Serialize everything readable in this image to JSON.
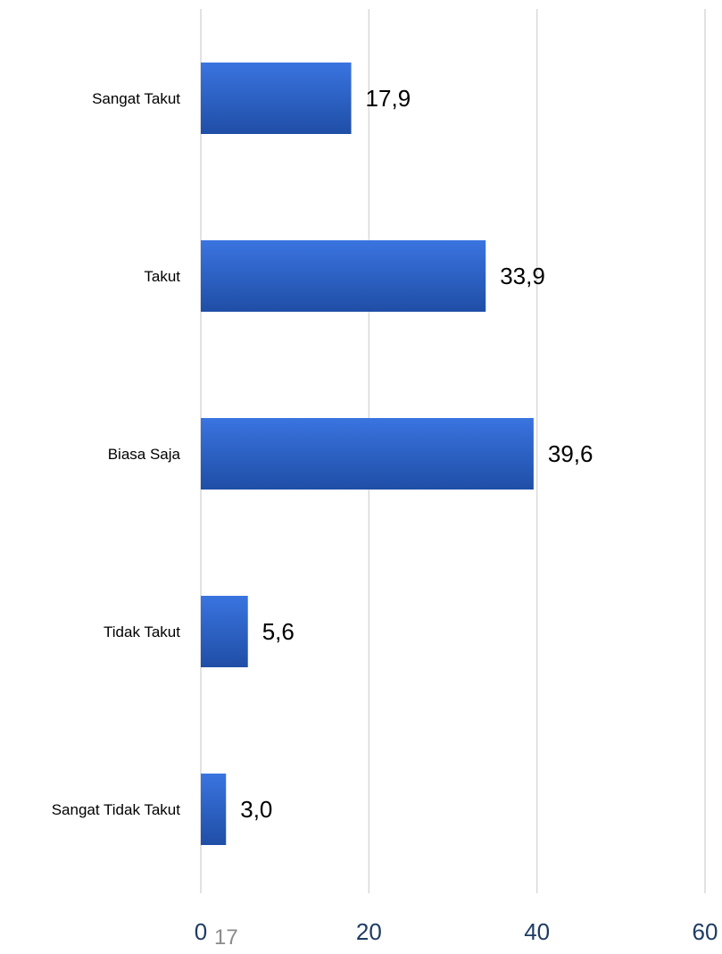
{
  "page_number": "17",
  "colors": {
    "bar_top": "#3a74e0",
    "bar_bottom": "#1f4ea6",
    "gridline": "#d9d9d9",
    "tick_text": "#1f3b63",
    "label_text": "#000000",
    "page_number_text": "#8a8a8a"
  },
  "chart_data": {
    "type": "bar",
    "orientation": "horizontal",
    "categories": [
      "Sangat Takut",
      "Takut",
      "Biasa Saja",
      "Tidak Takut",
      "Sangat Tidak Takut"
    ],
    "values": [
      17.9,
      33.9,
      39.6,
      5.6,
      3.0
    ],
    "data_labels": [
      "17,9",
      "33,9",
      "39,6",
      "5,6",
      "3,0"
    ],
    "xlim": [
      0,
      60
    ],
    "x_ticks": [
      0,
      20,
      40,
      60
    ],
    "x_tick_labels": [
      "0",
      "20",
      "40",
      "60"
    ],
    "grid": "vertical",
    "legend": "none"
  }
}
